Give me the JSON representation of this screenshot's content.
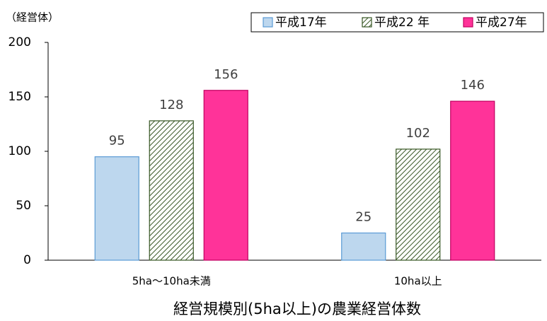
{
  "chart_data": {
    "type": "bar",
    "title": "経営規模別(5ha以上)の農業経営体数",
    "y_label": "（経営体）",
    "categories": [
      "5ha〜10ha未満",
      "10ha以上"
    ],
    "series": [
      {
        "name": "平成17年",
        "color": "#bdd7ee",
        "edgecolor": "#5b9bd5",
        "values": [
          95,
          25
        ]
      },
      {
        "name": "平成22 年",
        "color": "#375623",
        "edgecolor": "#375623",
        "pattern": "diagonal",
        "values": [
          128,
          102
        ]
      },
      {
        "name": "平成27年",
        "color": "#ff3399",
        "edgecolor": "#c00060",
        "values": [
          156,
          146
        ]
      }
    ],
    "ylim": [
      0,
      200
    ],
    "yticks": [
      0,
      50,
      100,
      150,
      200
    ],
    "grid": false,
    "legend": "top-right"
  }
}
